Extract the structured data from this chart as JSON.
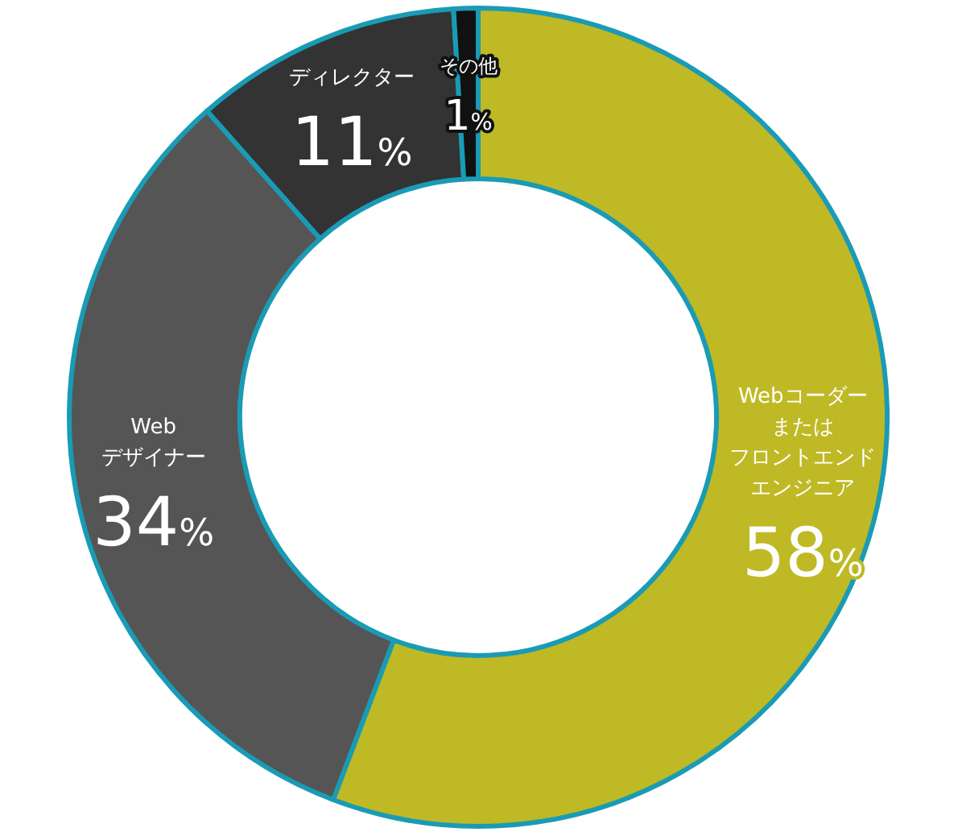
{
  "chart_data": {
    "type": "donut",
    "categories": [
      "Webコーダーまたはフロントエンドエンジニア",
      "Web\nデザイナー",
      "ディレクター",
      "その他"
    ],
    "values": [
      58,
      34,
      11,
      1
    ],
    "value_labels": [
      "58%",
      "34%",
      "11%",
      "1%"
    ],
    "colors": [
      "#bfb925",
      "#555555",
      "#333333",
      "#111111"
    ]
  }
}
